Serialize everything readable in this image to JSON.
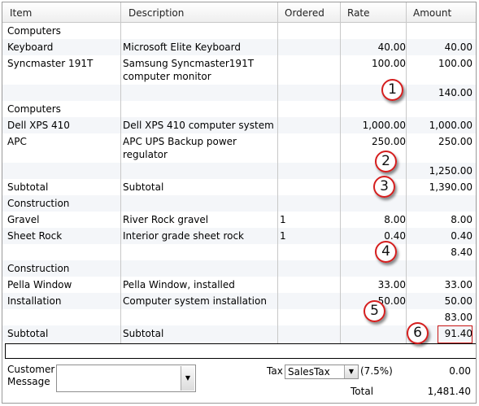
{
  "columns": [
    "Item",
    "Description",
    "Ordered",
    "Rate",
    "Amount"
  ],
  "rows": [
    {
      "item": "Computers",
      "desc": "",
      "ordered": "",
      "rate": "",
      "amount": ""
    },
    {
      "item": "Keyboard",
      "desc": "Microsoft Elite Keyboard",
      "ordered": "",
      "rate": "40.00",
      "amount": "40.00"
    },
    {
      "item": "Syncmaster 191T",
      "desc": "Samsung Syncmaster191T computer monitor",
      "ordered": "",
      "rate": "100.00",
      "amount": "100.00"
    },
    {
      "item": "",
      "desc": "",
      "ordered": "",
      "rate": "",
      "amount": "140.00"
    },
    {
      "item": "Computers",
      "desc": "",
      "ordered": "",
      "rate": "",
      "amount": ""
    },
    {
      "item": "Dell XPS 410",
      "desc": "Dell XPS 410 computer system",
      "ordered": "",
      "rate": "1,000.00",
      "amount": "1,000.00"
    },
    {
      "item": "APC",
      "desc": "APC UPS Backup power regulator",
      "ordered": "",
      "rate": "250.00",
      "amount": "250.00"
    },
    {
      "item": "",
      "desc": "",
      "ordered": "",
      "rate": "",
      "amount": "1,250.00"
    },
    {
      "item": "Subtotal",
      "desc": "Subtotal",
      "ordered": "",
      "rate": "",
      "amount": "1,390.00"
    },
    {
      "item": "Construction",
      "desc": "",
      "ordered": "",
      "rate": "",
      "amount": ""
    },
    {
      "item": "Gravel",
      "desc": "River Rock gravel",
      "ordered": "1",
      "rate": "8.00",
      "amount": "8.00"
    },
    {
      "item": "Sheet Rock",
      "desc": "Interior grade sheet rock",
      "ordered": "1",
      "rate": "0.40",
      "amount": "0.40"
    },
    {
      "item": "",
      "desc": "",
      "ordered": "",
      "rate": "",
      "amount": "8.40"
    },
    {
      "item": "Construction",
      "desc": "",
      "ordered": "",
      "rate": "",
      "amount": ""
    },
    {
      "item": "Pella Window",
      "desc": "Pella Window, installed",
      "ordered": "",
      "rate": "33.00",
      "amount": "33.00"
    },
    {
      "item": "Installation",
      "desc": "Computer system installation",
      "ordered": "",
      "rate": "50.00",
      "amount": "50.00"
    },
    {
      "item": "",
      "desc": "",
      "ordered": "",
      "rate": "",
      "amount": "83.00"
    },
    {
      "item": "Subtotal",
      "desc": "Subtotal",
      "ordered": "",
      "rate": "",
      "amount": "91.40"
    }
  ],
  "callouts": [
    "1",
    "2",
    "3",
    "4",
    "5",
    "6"
  ],
  "footer": {
    "customer_message_label": "Customer Message",
    "customer_message_value": "",
    "tax_label": "Tax",
    "tax_item": "SalesTax",
    "tax_rate": "(7.5%)",
    "tax_amount": "0.00",
    "total_label": "Total",
    "total_amount": "1,481.40"
  },
  "colors": {
    "callout_border": "#d51e1e",
    "highlight_border": "#c81414",
    "alt_row": "#f4f6f9"
  },
  "icons": {
    "dropdown": "chevron-down-icon"
  }
}
